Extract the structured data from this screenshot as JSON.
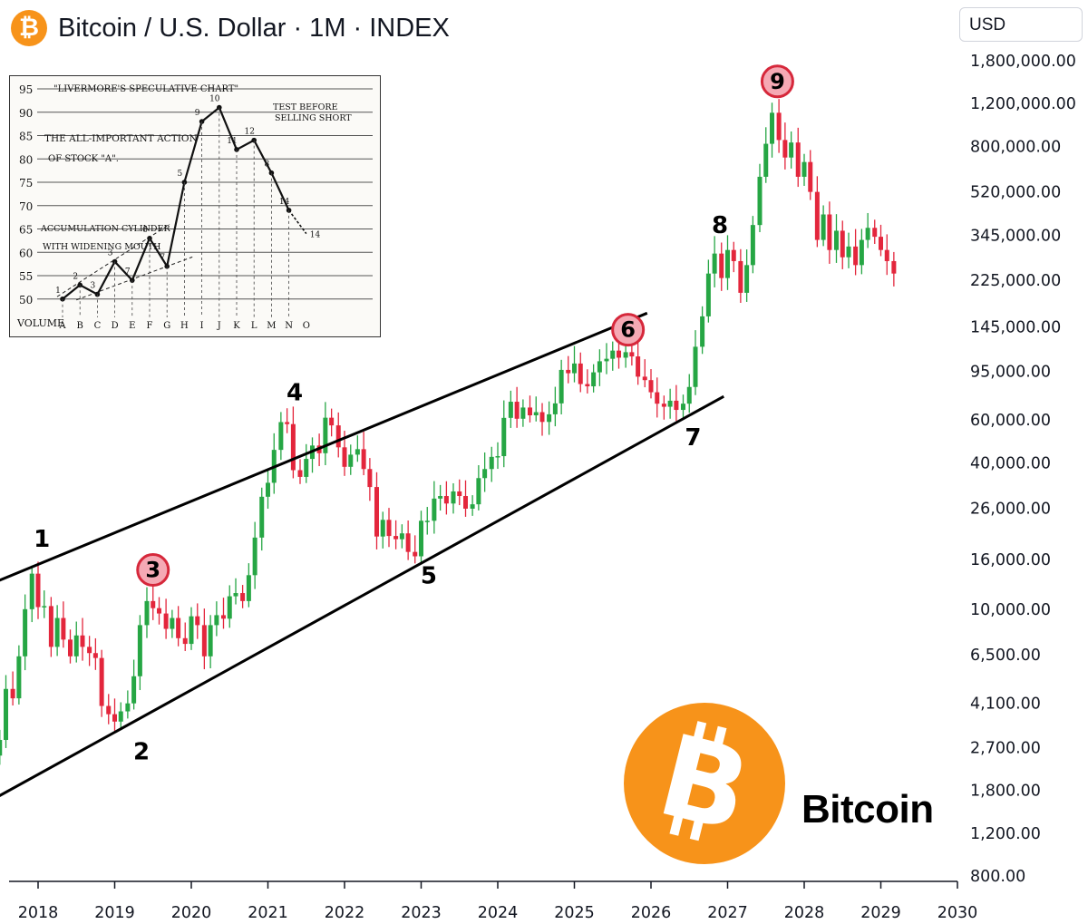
{
  "header": {
    "title": "Bitcoin / U.S. Dollar · 1M · INDEX",
    "logo_icon": "bitcoin-icon",
    "currency": "USD"
  },
  "brand": {
    "label": "Bitcoin",
    "logo_icon": "bitcoin-icon"
  },
  "colors": {
    "up": "#26a644",
    "down": "#e3263c",
    "bitcoin_orange": "#f7931a",
    "marker_fill": "#f5a9b4",
    "marker_stroke": "#d6283b"
  },
  "chart_data": {
    "type": "candlestick",
    "title": "Bitcoin / U.S. Dollar · 1M · INDEX",
    "scale": "log",
    "y_ticks": [
      "1,800,000.00",
      "1,200,000.00",
      "800,000.00",
      "520,000.00",
      "345,000.00",
      "225,000.00",
      "145,000.00",
      "95,000.00",
      "60,000.00",
      "40,000.00",
      "26,000.00",
      "16,000.00",
      "10,000.00",
      "6,500.00",
      "4,100.00",
      "2,700.00",
      "1,800.00",
      "1,200.00",
      "800.00"
    ],
    "y_tick_values": [
      1800000,
      1200000,
      800000,
      520000,
      345000,
      225000,
      145000,
      95000,
      60000,
      40000,
      26000,
      16000,
      10000,
      6500,
      4100,
      2700,
      1800,
      1200,
      800
    ],
    "x_ticks": [
      "2018",
      "2019",
      "2020",
      "2021",
      "2022",
      "2023",
      "2024",
      "2025",
      "2026",
      "2027",
      "2028",
      "2029",
      "2030"
    ],
    "x_tick_values": [
      2018,
      2019,
      2020,
      2021,
      2022,
      2023,
      2024,
      2025,
      2026,
      2027,
      2028,
      2029,
      2030
    ],
    "candles_note": "monthly closes, estimated; t in years",
    "closes": [
      [
        2017.0,
        1000
      ],
      [
        2017.08,
        1200
      ],
      [
        2017.17,
        1100
      ],
      [
        2017.25,
        1500
      ],
      [
        2017.33,
        2300
      ],
      [
        2017.42,
        2500
      ],
      [
        2017.5,
        2900
      ],
      [
        2017.58,
        4700
      ],
      [
        2017.67,
        4300
      ],
      [
        2017.75,
        6400
      ],
      [
        2017.83,
        10000
      ],
      [
        2017.92,
        14000
      ],
      [
        2018.0,
        10200
      ],
      [
        2018.08,
        10300
      ],
      [
        2018.17,
        7000
      ],
      [
        2018.25,
        9200
      ],
      [
        2018.33,
        7500
      ],
      [
        2018.42,
        6400
      ],
      [
        2018.5,
        7800
      ],
      [
        2018.58,
        7000
      ],
      [
        2018.67,
        6600
      ],
      [
        2018.75,
        6300
      ],
      [
        2018.83,
        4000
      ],
      [
        2018.92,
        3700
      ],
      [
        2019.0,
        3450
      ],
      [
        2019.08,
        3800
      ],
      [
        2019.17,
        4100
      ],
      [
        2019.25,
        5300
      ],
      [
        2019.33,
        8600
      ],
      [
        2019.42,
        10800
      ],
      [
        2019.5,
        10100
      ],
      [
        2019.58,
        9600
      ],
      [
        2019.67,
        8300
      ],
      [
        2019.75,
        9200
      ],
      [
        2019.83,
        7600
      ],
      [
        2019.92,
        7200
      ],
      [
        2020.0,
        9350
      ],
      [
        2020.08,
        8600
      ],
      [
        2020.17,
        6400
      ],
      [
        2020.25,
        8600
      ],
      [
        2020.33,
        9450
      ],
      [
        2020.42,
        9140
      ],
      [
        2020.5,
        11300
      ],
      [
        2020.58,
        11650
      ],
      [
        2020.67,
        10800
      ],
      [
        2020.75,
        13800
      ],
      [
        2020.83,
        19700
      ],
      [
        2020.92,
        29000
      ],
      [
        2021.0,
        33100
      ],
      [
        2021.08,
        45200
      ],
      [
        2021.17,
        58800
      ],
      [
        2021.25,
        57700
      ],
      [
        2021.33,
        37300
      ],
      [
        2021.42,
        35000
      ],
      [
        2021.5,
        41500
      ],
      [
        2021.58,
        47100
      ],
      [
        2021.67,
        43800
      ],
      [
        2021.75,
        61300
      ],
      [
        2021.83,
        57000
      ],
      [
        2021.92,
        46300
      ],
      [
        2022.0,
        38500
      ],
      [
        2022.08,
        43200
      ],
      [
        2022.17,
        45500
      ],
      [
        2022.25,
        37700
      ],
      [
        2022.33,
        31800
      ],
      [
        2022.42,
        19900
      ],
      [
        2022.5,
        23300
      ],
      [
        2022.58,
        20000
      ],
      [
        2022.67,
        19400
      ],
      [
        2022.75,
        20500
      ],
      [
        2022.83,
        17200
      ],
      [
        2022.92,
        16500
      ],
      [
        2023.0,
        23100
      ],
      [
        2023.08,
        23100
      ],
      [
        2023.17,
        28500
      ],
      [
        2023.25,
        29200
      ],
      [
        2023.33,
        27200
      ],
      [
        2023.42,
        30500
      ],
      [
        2023.5,
        29200
      ],
      [
        2023.58,
        25900
      ],
      [
        2023.67,
        27000
      ],
      [
        2023.75,
        34600
      ],
      [
        2023.83,
        37700
      ],
      [
        2023.92,
        42300
      ],
      [
        2024.0,
        42600
      ],
      [
        2024.08,
        61200
      ],
      [
        2024.17,
        71300
      ],
      [
        2024.25,
        60700
      ],
      [
        2024.33,
        67500
      ],
      [
        2024.42,
        62700
      ],
      [
        2024.5,
        64600
      ],
      [
        2024.58,
        58900
      ],
      [
        2024.67,
        63300
      ],
      [
        2024.75,
        70200
      ],
      [
        2024.83,
        96400
      ],
      [
        2024.92,
        93400
      ],
      [
        2025.0,
        102400
      ],
      [
        2025.08,
        84300
      ],
      [
        2025.17,
        82500
      ],
      [
        2025.25,
        94200
      ],
      [
        2025.33,
        104600
      ],
      [
        2025.42,
        107100
      ],
      [
        2025.5,
        115700
      ],
      [
        2025.58,
        108200
      ],
      [
        2025.67,
        114000
      ],
      [
        2025.75,
        109500
      ],
      [
        2025.83,
        90400
      ],
      [
        2025.92,
        87500
      ],
      [
        2026.0,
        78000
      ],
      [
        2026.08,
        70000
      ],
      [
        2026.17,
        68000
      ],
      [
        2026.25,
        72000
      ],
      [
        2026.33,
        66000
      ],
      [
        2026.42,
        70000
      ],
      [
        2026.5,
        82000
      ],
      [
        2026.58,
        120000
      ],
      [
        2026.67,
        160000
      ],
      [
        2026.75,
        240000
      ],
      [
        2026.83,
        290000
      ],
      [
        2026.92,
        230000
      ],
      [
        2027.0,
        300000
      ],
      [
        2027.08,
        270000
      ],
      [
        2027.17,
        200000
      ],
      [
        2027.25,
        260000
      ],
      [
        2027.33,
        380000
      ],
      [
        2027.42,
        600000
      ],
      [
        2027.5,
        820000
      ],
      [
        2027.58,
        1100000
      ],
      [
        2027.67,
        850000
      ],
      [
        2027.75,
        720000
      ],
      [
        2027.83,
        830000
      ],
      [
        2027.92,
        600000
      ],
      [
        2028.0,
        690000
      ],
      [
        2028.08,
        520000
      ],
      [
        2028.17,
        330000
      ],
      [
        2028.25,
        420000
      ],
      [
        2028.33,
        300000
      ],
      [
        2028.42,
        360000
      ],
      [
        2028.5,
        280000
      ],
      [
        2028.58,
        310000
      ],
      [
        2028.67,
        260000
      ],
      [
        2028.75,
        330000
      ],
      [
        2028.83,
        370000
      ],
      [
        2028.92,
        340000
      ],
      [
        2029.0,
        300000
      ],
      [
        2029.08,
        270000
      ],
      [
        2029.17,
        240000
      ]
    ],
    "open_start": 900,
    "channel": {
      "upper": [
        [
          2017.05,
          11500
        ],
        [
          2025.95,
          165000
        ]
      ],
      "lower": [
        [
          2017.05,
          1430
        ],
        [
          2026.95,
          75000
        ]
      ]
    },
    "wave_labels": [
      {
        "label": "1",
        "t": 2018.05,
        "price": 19500,
        "circled": false
      },
      {
        "label": "2",
        "t": 2019.35,
        "price": 2600,
        "circled": false
      },
      {
        "label": "3",
        "t": 2019.5,
        "price": 14500,
        "circled": true
      },
      {
        "label": "4",
        "t": 2021.35,
        "price": 78000,
        "circled": false
      },
      {
        "label": "5",
        "t": 2023.1,
        "price": 13800,
        "circled": false
      },
      {
        "label": "6",
        "t": 2025.7,
        "price": 141000,
        "circled": true
      },
      {
        "label": "7",
        "t": 2026.55,
        "price": 51000,
        "circled": false
      },
      {
        "label": "8",
        "t": 2026.9,
        "price": 380000,
        "circled": false
      },
      {
        "label": "9",
        "t": 2027.65,
        "price": 1480000,
        "circled": true
      }
    ]
  },
  "livermore": {
    "title": "\"LIVERMORE'S SPECULATIVE CHART\"",
    "note1": "THE ALL-IMPORTANT ACTION",
    "note2": "OF STOCK \"A\".",
    "test1": "TEST BEFORE",
    "test2": "SELLING SHORT",
    "accum1": "ACCUMULATION CYLINDER",
    "accum2": "WITH WIDENING MOUTH",
    "volume": "VOLUME",
    "levels": [
      "95",
      "90",
      "85",
      "80",
      "75",
      "70",
      "65",
      "60",
      "55",
      "50"
    ],
    "x_letters": [
      "A",
      "B",
      "C",
      "D",
      "E",
      "F",
      "G",
      "H",
      "I",
      "J",
      "K",
      "L",
      "M",
      "N",
      "O"
    ],
    "points": [
      {
        "n": "1",
        "x": "A",
        "v": 50
      },
      {
        "n": "2",
        "x": "B",
        "v": 53
      },
      {
        "n": "3",
        "x": "C",
        "v": 51
      },
      {
        "n": "3",
        "x": "D",
        "v": 58
      },
      {
        "n": "7",
        "x": "E",
        "v": 54
      },
      {
        "n": "6",
        "x": "F",
        "v": 63
      },
      {
        "n": "7",
        "x": "G",
        "v": 57
      },
      {
        "n": "5",
        "x": "H",
        "v": 75
      },
      {
        "n": "9",
        "x": "I",
        "v": 88
      },
      {
        "n": "10",
        "x": "J",
        "v": 91
      },
      {
        "n": "11",
        "x": "K",
        "v": 82
      },
      {
        "n": "12",
        "x": "L",
        "v": 84
      },
      {
        "n": "8",
        "x": "M",
        "v": 77
      },
      {
        "n": "14",
        "x": "N",
        "v": 69
      }
    ],
    "last_point": {
      "n": "14",
      "x": "O",
      "v": 64
    }
  }
}
